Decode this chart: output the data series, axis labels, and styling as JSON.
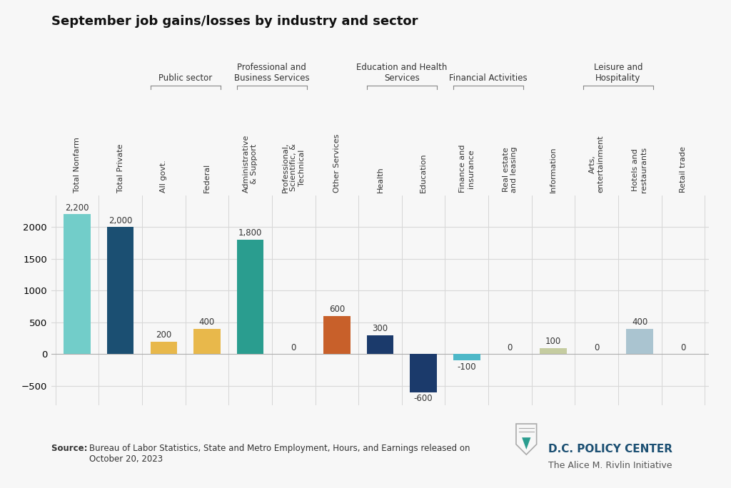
{
  "title": "September job gains/losses by industry and sector",
  "bars": [
    {
      "label": "Total Nonfarm",
      "value": 2200,
      "color": "#72cdc9",
      "group": null
    },
    {
      "label": "Total Private",
      "value": 2000,
      "color": "#1b4f72",
      "group": null
    },
    {
      "label": "All govt.",
      "value": 200,
      "color": "#e8b84b",
      "group": "Public sector"
    },
    {
      "label": "Federal",
      "value": 400,
      "color": "#e8b84b",
      "group": "Public sector"
    },
    {
      "label": "Administrative\n& Support",
      "value": 1800,
      "color": "#2a9d8f",
      "group": "Professional and\nBusiness Services"
    },
    {
      "label": "Professional,\nScientific, &\nTechnical",
      "value": 0,
      "color": "#2a9d8f",
      "group": "Professional and\nBusiness Services"
    },
    {
      "label": "Other Services",
      "value": 600,
      "color": "#c8602a",
      "group": null
    },
    {
      "label": "Health",
      "value": 300,
      "color": "#1b3a6b",
      "group": "Education and Health\nServices"
    },
    {
      "label": "Education",
      "value": -600,
      "color": "#1b3a6b",
      "group": "Education and Health\nServices"
    },
    {
      "label": "Finance and\ninsurance",
      "value": -100,
      "color": "#4eb8c8",
      "group": "Financial Activities"
    },
    {
      "label": "Real estate\nand leasing",
      "value": 0,
      "color": "#4eb8c8",
      "group": "Financial Activities"
    },
    {
      "label": "Information",
      "value": 100,
      "color": "#c5cca0",
      "group": null
    },
    {
      "label": "Arts,\nentertainment",
      "value": 0,
      "color": "#aac4d0",
      "group": "Leisure and\nHospitality"
    },
    {
      "label": "Hotels and\nrestaurants",
      "value": 400,
      "color": "#aac4d0",
      "group": "Leisure and\nHospitality"
    },
    {
      "label": "Retail trade",
      "value": 0,
      "color": "#b8c4bc",
      "group": null
    }
  ],
  "groups": [
    {
      "name": "Public sector",
      "indices": [
        2,
        3
      ]
    },
    {
      "name": "Professional and\nBusiness Services",
      "indices": [
        4,
        5
      ]
    },
    {
      "name": "Education and Health\nServices",
      "indices": [
        7,
        8
      ]
    },
    {
      "name": "Financial Activities",
      "indices": [
        9,
        10
      ]
    },
    {
      "name": "Leisure and\nHospitality",
      "indices": [
        12,
        13
      ]
    }
  ],
  "ylim": [
    -800,
    2500
  ],
  "yticks": [
    -500,
    0,
    500,
    1000,
    1500,
    2000
  ],
  "source_bold": "Source: ",
  "source_rest": "Bureau of Labor Statistics, State and Metro Employment, Hours, and Earnings released on\nOctober 20, 2023",
  "dc_policy_center": "D.C. POLICY CENTER",
  "rivlin": "The Alice M. Rivlin Initiative",
  "background_color": "#f7f7f7",
  "grid_color": "#d8d8d8",
  "vline_color": "#d0d0d0"
}
